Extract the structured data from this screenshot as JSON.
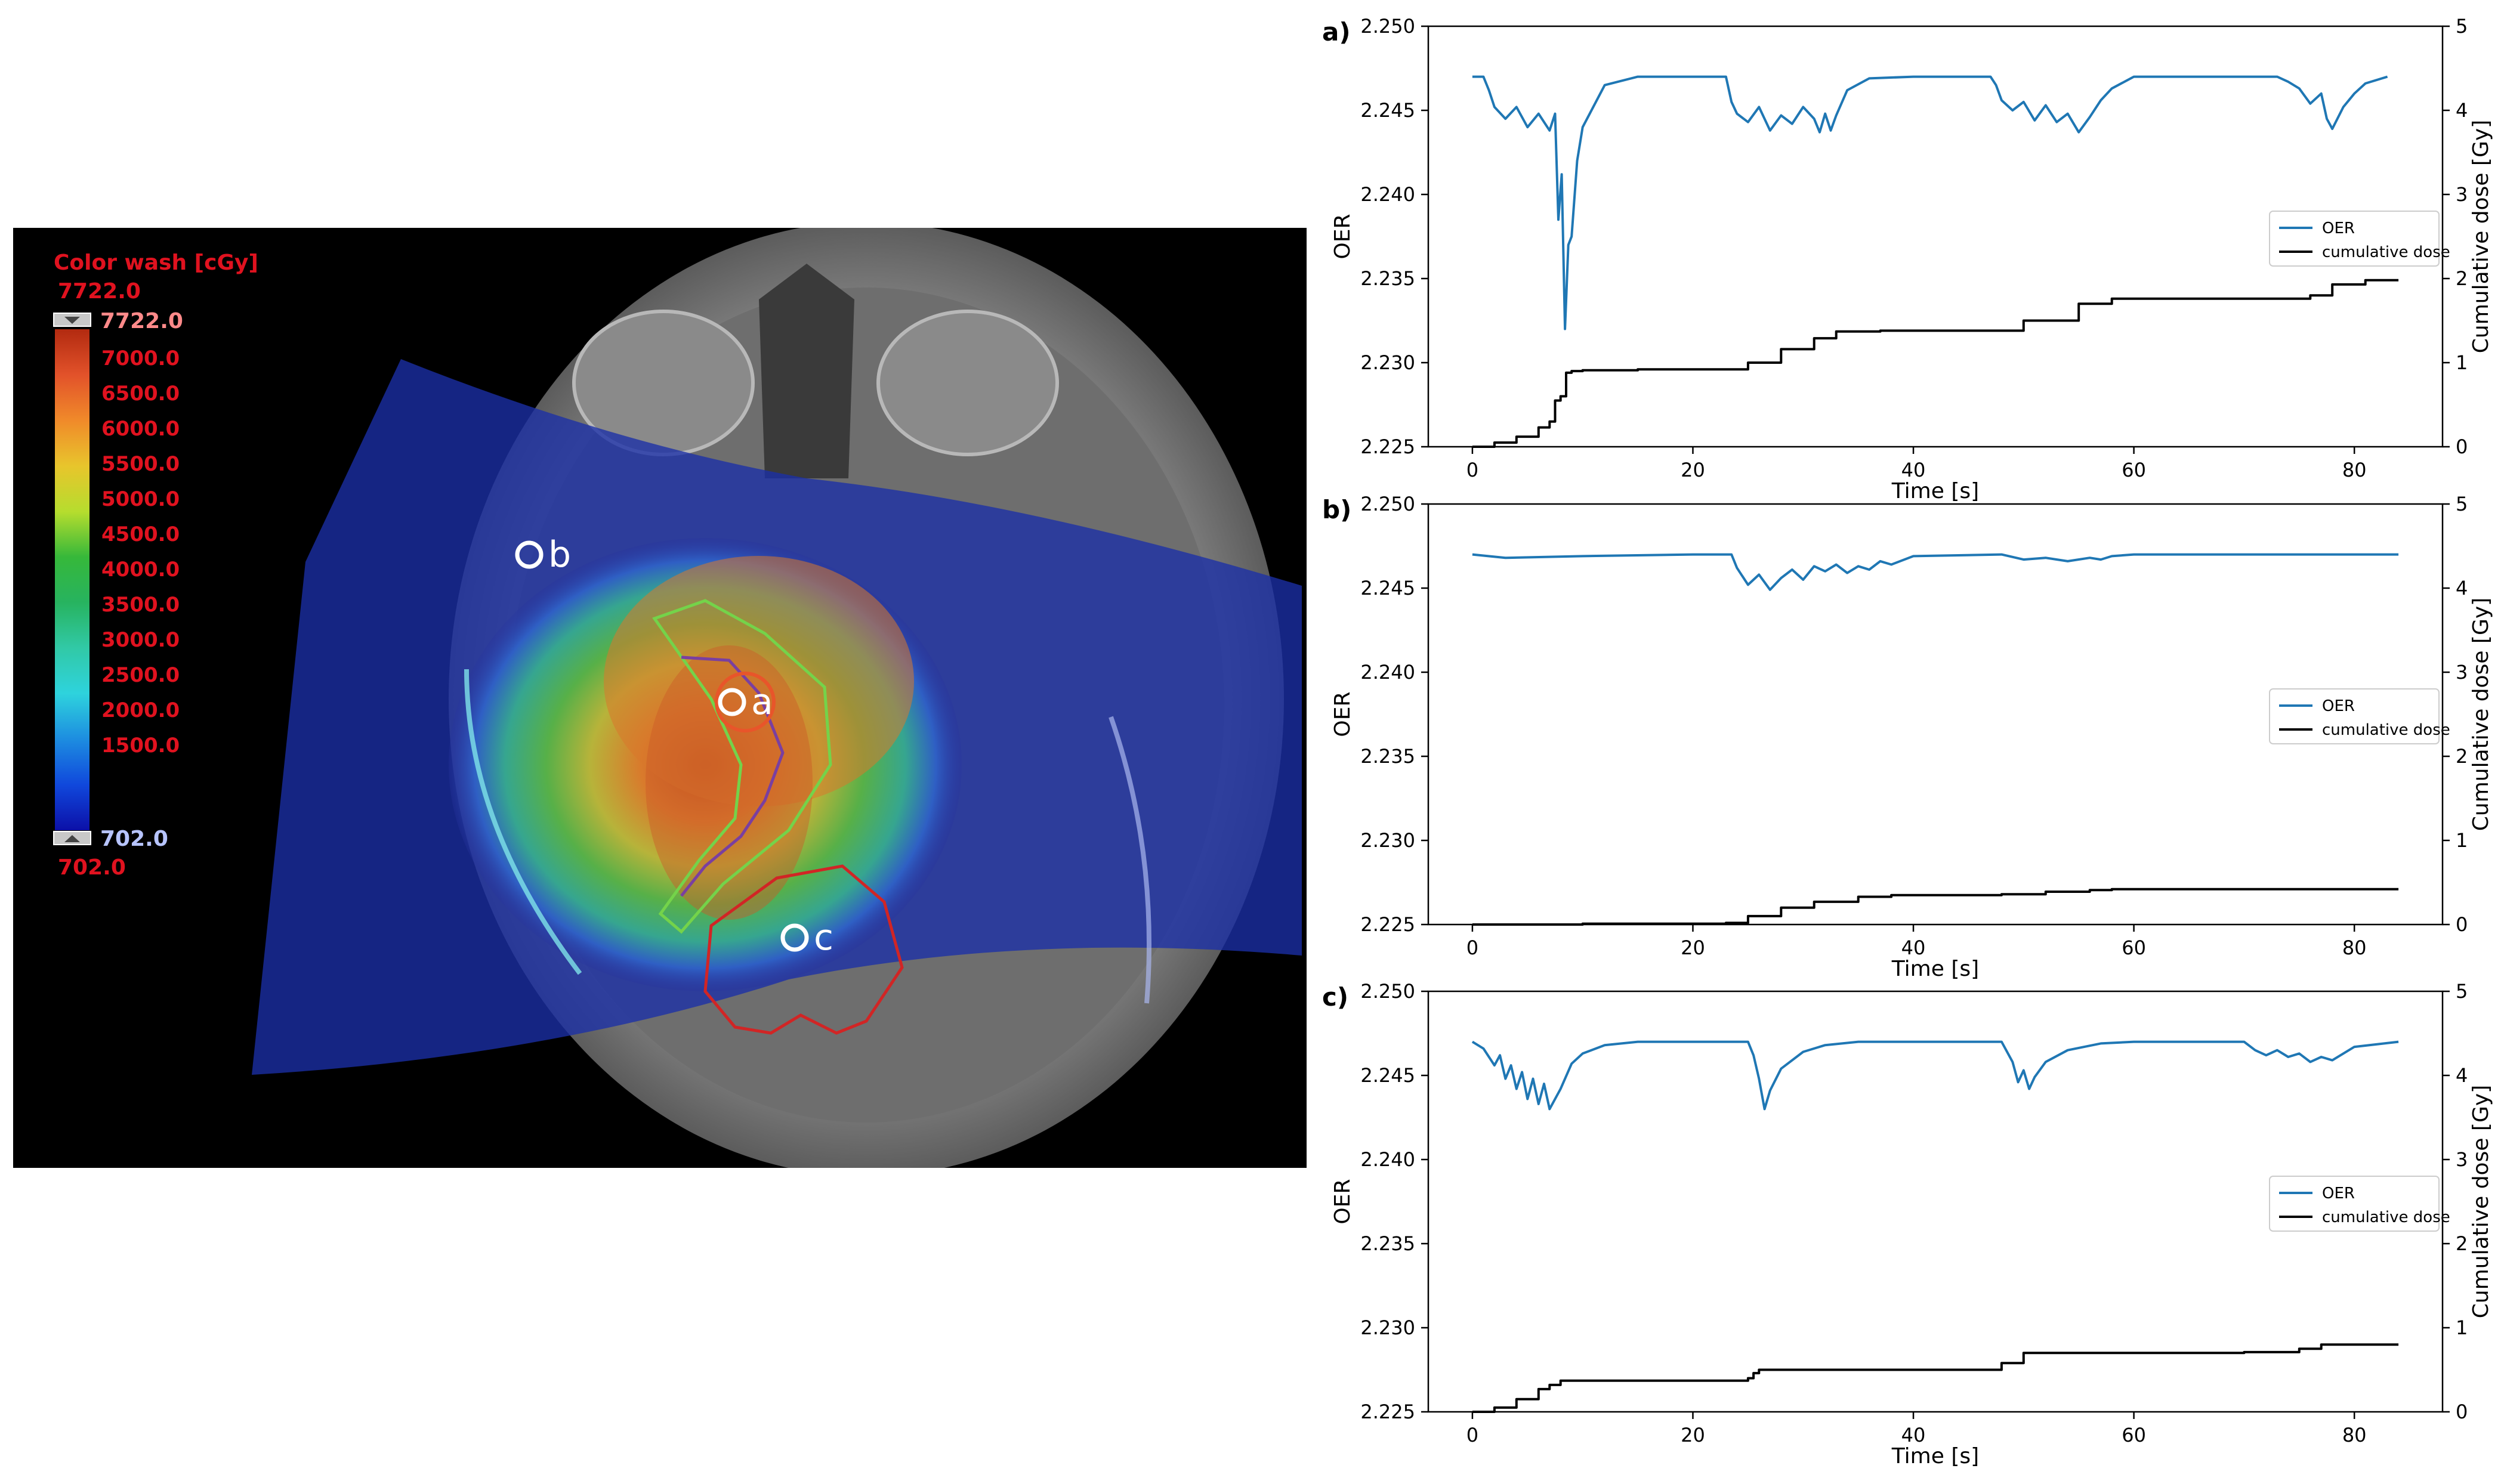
{
  "colorbar": {
    "title": "Color wash [cGy]",
    "max_top": "7722.0",
    "max_handle": "7722.0",
    "levels": [
      "7000.0",
      "6500.0",
      "6000.0",
      "5500.0",
      "5000.0",
      "4500.0",
      "4000.0",
      "3500.0",
      "3000.0",
      "2500.0",
      "2000.0",
      "1500.0"
    ],
    "min_handle": "702.0",
    "min_bottom": "702.0",
    "gradient": [
      "#b22a10",
      "#e2522a",
      "#f08a2a",
      "#e8c52c",
      "#b6dd2e",
      "#36b83a",
      "#27b35f",
      "#31c9a6",
      "#2ed3dd",
      "#1d8de0",
      "#1048dc",
      "#0c10a8"
    ]
  },
  "image_points": [
    {
      "id": "a",
      "label": "a"
    },
    {
      "id": "b",
      "label": "b"
    },
    {
      "id": "c",
      "label": "c"
    }
  ],
  "colors": {
    "oer": "#1f77b4",
    "dose": "#000000",
    "contour_green": "#74d34a",
    "contour_red": "#d12525",
    "contour_purple": "#7a3fa0",
    "label_red": "#e0121f"
  },
  "chart_data": [
    {
      "type": "line",
      "panel_label": "a)",
      "xlabel": "Time [s]",
      "ylabel_left": "OER",
      "ylabel_right": "Cumulative dose [Gy]",
      "xlim": [
        -4,
        88
      ],
      "ylim_left": [
        2.225,
        2.25
      ],
      "ylim_right": [
        0,
        5
      ],
      "xticks": [
        "0",
        "20",
        "40",
        "60",
        "80"
      ],
      "yticks_left": [
        "2.225",
        "2.230",
        "2.235",
        "2.240",
        "2.245",
        "2.250"
      ],
      "yticks_right": [
        "0",
        "1",
        "2",
        "3",
        "4",
        "5"
      ],
      "legend_position": "center-right",
      "series": [
        {
          "name": "OER",
          "axis": "left",
          "x": [
            0,
            1,
            1.5,
            2,
            3,
            4,
            5,
            6,
            7,
            7.5,
            7.8,
            8.1,
            8.4,
            8.7,
            9,
            9.5,
            10,
            12,
            15,
            18,
            23,
            23.5,
            24,
            25,
            26,
            27,
            28,
            29,
            30,
            31,
            31.5,
            32,
            32.5,
            33,
            34,
            36,
            40,
            47,
            47.5,
            48,
            49,
            50,
            51,
            52,
            53,
            54,
            55,
            56,
            57,
            58,
            60,
            70,
            73,
            74,
            75,
            76,
            77,
            77.5,
            78,
            79,
            80,
            81,
            83
          ],
          "y": [
            2.247,
            2.247,
            2.2462,
            2.2452,
            2.2445,
            2.2452,
            2.244,
            2.2448,
            2.2438,
            2.2448,
            2.2385,
            2.2412,
            2.232,
            2.237,
            2.2375,
            2.242,
            2.244,
            2.2465,
            2.247,
            2.247,
            2.247,
            2.2455,
            2.2448,
            2.2443,
            2.2452,
            2.2438,
            2.2447,
            2.2442,
            2.2452,
            2.2445,
            2.2437,
            2.2448,
            2.2438,
            2.2447,
            2.2462,
            2.2469,
            2.247,
            2.247,
            2.2465,
            2.2456,
            2.245,
            2.2455,
            2.2444,
            2.2453,
            2.2443,
            2.2448,
            2.2437,
            2.2446,
            2.2456,
            2.2463,
            2.247,
            2.247,
            2.247,
            2.2467,
            2.2463,
            2.2454,
            2.246,
            2.2445,
            2.2439,
            2.2452,
            2.246,
            2.2466,
            2.247
          ]
        },
        {
          "name": "cumulative dose",
          "axis": "right",
          "x": [
            0,
            2,
            4,
            6,
            7,
            7.5,
            8,
            8.5,
            9,
            10,
            15,
            20,
            23.5,
            25,
            28,
            31,
            33,
            37,
            47,
            50,
            55,
            58,
            70,
            76,
            78,
            81,
            84
          ],
          "y": [
            0,
            0.05,
            0.12,
            0.23,
            0.3,
            0.55,
            0.6,
            0.88,
            0.9,
            0.91,
            0.92,
            0.92,
            0.92,
            1.0,
            1.16,
            1.29,
            1.37,
            1.38,
            1.38,
            1.5,
            1.7,
            1.76,
            1.76,
            1.8,
            1.93,
            1.98,
            1.98
          ]
        }
      ]
    },
    {
      "type": "line",
      "panel_label": "b)",
      "xlabel": "Time [s]",
      "ylabel_left": "OER",
      "ylabel_right": "Cumulative dose [Gy]",
      "xlim": [
        -4,
        88
      ],
      "ylim_left": [
        2.225,
        2.25
      ],
      "ylim_right": [
        0,
        5
      ],
      "xticks": [
        "0",
        "20",
        "40",
        "60",
        "80"
      ],
      "yticks_left": [
        "2.225",
        "2.230",
        "2.235",
        "2.240",
        "2.245",
        "2.250"
      ],
      "yticks_right": [
        "0",
        "1",
        "2",
        "3",
        "4",
        "5"
      ],
      "legend_position": "center-right",
      "series": [
        {
          "name": "OER",
          "axis": "left",
          "x": [
            0,
            3,
            10,
            20,
            23.5,
            24,
            25,
            26,
            27,
            28,
            29,
            30,
            31,
            32,
            33,
            34,
            35,
            36,
            37,
            38,
            40,
            48,
            50,
            52,
            54,
            56,
            57,
            58,
            60,
            70,
            84
          ],
          "y": [
            2.247,
            2.2468,
            2.2469,
            2.247,
            2.247,
            2.2462,
            2.2452,
            2.2458,
            2.2449,
            2.2456,
            2.2461,
            2.2455,
            2.2463,
            2.246,
            2.2464,
            2.2459,
            2.2463,
            2.2461,
            2.2466,
            2.2464,
            2.2469,
            2.247,
            2.2467,
            2.2468,
            2.2466,
            2.2468,
            2.2467,
            2.2469,
            2.247,
            2.247,
            2.247
          ]
        },
        {
          "name": "cumulative dose",
          "axis": "right",
          "x": [
            0,
            10,
            20,
            23,
            25,
            28,
            31,
            35,
            38,
            45,
            48,
            52,
            56,
            58,
            84
          ],
          "y": [
            0,
            0.01,
            0.01,
            0.02,
            0.1,
            0.2,
            0.27,
            0.33,
            0.35,
            0.35,
            0.36,
            0.39,
            0.41,
            0.42,
            0.42
          ]
        }
      ]
    },
    {
      "type": "line",
      "panel_label": "c)",
      "xlabel": "Time [s]",
      "ylabel_left": "OER",
      "ylabel_right": "Cumulative dose [Gy]",
      "xlim": [
        -4,
        88
      ],
      "ylim_left": [
        2.225,
        2.25
      ],
      "ylim_right": [
        0,
        5
      ],
      "xticks": [
        "0",
        "20",
        "40",
        "60",
        "80"
      ],
      "yticks_left": [
        "2.225",
        "2.230",
        "2.235",
        "2.240",
        "2.245",
        "2.250"
      ],
      "yticks_right": [
        "0",
        "1",
        "2",
        "3",
        "4",
        "5"
      ],
      "legend_position": "center-right",
      "series": [
        {
          "name": "OER",
          "axis": "left",
          "x": [
            0,
            1,
            2,
            2.5,
            3,
            3.5,
            4,
            4.5,
            5,
            5.5,
            6,
            6.5,
            7,
            8,
            9,
            10,
            12,
            15,
            20,
            25,
            25.5,
            26,
            26.5,
            27,
            28,
            30,
            32,
            35,
            40,
            48,
            49,
            49.5,
            50,
            50.5,
            51,
            52,
            54,
            57,
            60,
            70,
            71,
            72,
            73,
            74,
            75,
            76,
            77,
            78,
            80,
            84
          ],
          "y": [
            2.247,
            2.2466,
            2.2456,
            2.2462,
            2.2448,
            2.2456,
            2.2442,
            2.2452,
            2.2436,
            2.2448,
            2.2433,
            2.2445,
            2.243,
            2.2442,
            2.2457,
            2.2463,
            2.2468,
            2.247,
            2.247,
            2.247,
            2.2462,
            2.2448,
            2.243,
            2.2441,
            2.2454,
            2.2464,
            2.2468,
            2.247,
            2.247,
            2.247,
            2.2458,
            2.2446,
            2.2453,
            2.2442,
            2.2449,
            2.2458,
            2.2465,
            2.2469,
            2.247,
            2.247,
            2.2465,
            2.2462,
            2.2465,
            2.2461,
            2.2463,
            2.2458,
            2.2461,
            2.2459,
            2.2467,
            2.247
          ]
        },
        {
          "name": "cumulative dose",
          "axis": "right",
          "x": [
            0,
            2,
            4,
            6,
            7,
            8,
            10,
            20,
            25,
            25.5,
            26,
            27,
            40,
            47,
            48,
            50,
            60,
            70,
            75,
            77,
            84
          ],
          "y": [
            0,
            0.05,
            0.15,
            0.27,
            0.32,
            0.37,
            0.37,
            0.37,
            0.4,
            0.46,
            0.5,
            0.5,
            0.5,
            0.5,
            0.58,
            0.7,
            0.7,
            0.71,
            0.75,
            0.8,
            0.8
          ]
        }
      ]
    }
  ]
}
